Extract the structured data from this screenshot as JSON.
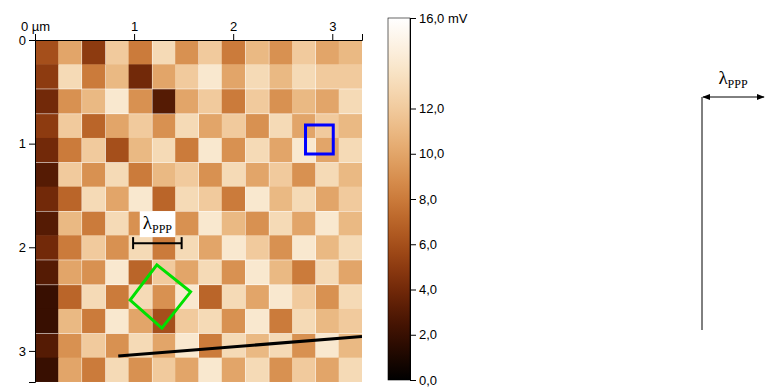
{
  "chart_data": {
    "type": "heatmap",
    "x": [
      0.12,
      0.35,
      0.59,
      0.83,
      1.06,
      1.3,
      1.53,
      1.77,
      2.0,
      2.24,
      2.48,
      2.71,
      2.95,
      3.18
    ],
    "y": [
      0.12,
      0.35,
      0.59,
      0.83,
      1.06,
      1.3,
      1.53,
      1.77,
      2.0,
      2.24,
      2.48,
      2.71,
      2.95,
      3.18
    ],
    "values": [
      [
        6,
        10,
        5,
        12,
        8,
        13,
        9,
        12,
        8,
        11,
        9,
        12,
        10,
        11
      ],
      [
        5,
        13,
        8,
        11,
        4,
        10,
        12,
        14,
        10,
        13,
        11,
        13,
        12,
        12
      ],
      [
        4,
        9,
        11,
        14,
        9,
        3,
        10,
        12,
        8,
        12,
        9,
        11,
        10,
        13
      ],
      [
        5,
        12,
        7,
        10,
        12,
        9,
        13,
        10,
        12,
        9,
        13,
        10,
        12,
        11
      ],
      [
        4,
        8,
        12,
        6,
        11,
        13,
        8,
        14,
        9,
        13,
        10,
        14,
        10,
        13
      ],
      [
        3,
        12,
        9,
        13,
        8,
        11,
        12,
        9,
        13,
        10,
        12,
        9,
        13,
        11
      ],
      [
        4,
        7,
        13,
        10,
        14,
        7,
        13,
        12,
        8,
        14,
        11,
        13,
        10,
        12
      ],
      [
        3,
        11,
        8,
        13,
        9,
        12,
        9,
        14,
        11,
        9,
        13,
        10,
        14,
        11
      ],
      [
        4,
        8,
        12,
        9,
        13,
        8,
        13,
        10,
        14,
        12,
        9,
        14,
        11,
        13
      ],
      [
        3,
        10,
        9,
        14,
        7,
        12,
        10,
        13,
        9,
        14,
        11,
        8,
        13,
        10
      ],
      [
        2,
        7,
        13,
        8,
        13,
        9,
        14,
        7,
        13,
        10,
        14,
        12,
        9,
        13
      ],
      [
        2,
        11,
        8,
        14,
        10,
        6,
        12,
        13,
        9,
        14,
        8,
        13,
        11,
        12
      ],
      [
        3,
        9,
        12,
        9,
        13,
        10,
        14,
        8,
        13,
        11,
        13,
        9,
        14,
        11
      ],
      [
        2,
        10,
        8,
        13,
        9,
        12,
        10,
        14,
        10,
        13,
        9,
        12,
        10,
        13
      ]
    ],
    "xlim": [
      0,
      3.3
    ],
    "ylim": [
      0,
      3.3
    ],
    "xticks": [
      {
        "value": 0,
        "label": "0 µm"
      },
      1,
      2,
      3
    ],
    "yticks": [
      0,
      1,
      2,
      3
    ],
    "colorbar": {
      "range": [
        0,
        16
      ],
      "ticks": [
        {
          "value": 0,
          "label": "0,0"
        },
        {
          "value": 2,
          "label": "2,0"
        },
        {
          "value": 4,
          "label": "4,0"
        },
        {
          "value": 6,
          "label": "6,0"
        },
        {
          "value": 8,
          "label": "8,0"
        },
        {
          "value": 10,
          "label": "10,0"
        },
        {
          "value": 12,
          "label": "12,0"
        },
        {
          "value": 16,
          "label": "16,0 mV"
        }
      ]
    },
    "annotations": [
      {
        "shape": "bracket",
        "x": [
          0.99,
          1.48
        ],
        "y": [
          1.96,
          1.96
        ],
        "text": "λ",
        "subscript": "PPP",
        "color": "#000000"
      },
      {
        "shape": "polygon",
        "x": [
          1.23,
          1.57,
          1.28,
          0.96
        ],
        "y": [
          2.17,
          2.43,
          2.78,
          2.51
        ],
        "color": "#00e000"
      },
      {
        "shape": "polygon",
        "x": [
          2.73,
          3.01,
          3.01,
          2.73
        ],
        "y": [
          0.82,
          0.82,
          1.1,
          1.1
        ],
        "color": "#0000ff"
      },
      {
        "shape": "line",
        "x": [
          0.84,
          3.3
        ],
        "y": [
          3.05,
          2.86
        ],
        "color": "#000000"
      }
    ],
    "side_label": {
      "text": "λ",
      "subscript": "PPP"
    }
  }
}
